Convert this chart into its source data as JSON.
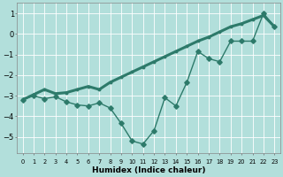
{
  "xlabel": "Humidex (Indice chaleur)",
  "background_color": "#b2dfdb",
  "grid_color": "#ffffff",
  "line_color": "#2d7a6a",
  "x_data": [
    0,
    1,
    2,
    3,
    4,
    5,
    6,
    7,
    8,
    9,
    10,
    11,
    12,
    13,
    14,
    15,
    16,
    17,
    18,
    19,
    20,
    21,
    22,
    23
  ],
  "y_curve": [
    -3.2,
    -3.0,
    -3.15,
    -3.05,
    -3.3,
    -3.45,
    -3.5,
    -3.35,
    -3.6,
    -4.35,
    -5.2,
    -5.35,
    -4.7,
    -3.1,
    -3.5,
    -2.35,
    -0.85,
    -1.2,
    -1.35,
    -0.35,
    -0.35,
    -0.35,
    1.0,
    0.35
  ],
  "y_trend": [
    -3.2,
    -2.95,
    -2.7,
    -2.9,
    -2.85,
    -2.7,
    -2.55,
    -2.7,
    -2.35,
    -2.1,
    -1.85,
    -1.6,
    -1.35,
    -1.1,
    -0.85,
    -0.6,
    -0.35,
    -0.15,
    0.1,
    0.35,
    0.5,
    0.7,
    0.9,
    0.35
  ],
  "ylim": [
    -5.8,
    1.5
  ],
  "xlim": [
    -0.5,
    23.5
  ],
  "yticks": [
    1,
    0,
    -1,
    -2,
    -3,
    -4,
    -5
  ],
  "xtick_labels": [
    "0",
    "1",
    "2",
    "3",
    "4",
    "5",
    "6",
    "7",
    "8",
    "9",
    "10",
    "11",
    "12",
    "13",
    "14",
    "15",
    "16",
    "17",
    "18",
    "19",
    "20",
    "21",
    "22",
    "23"
  ]
}
